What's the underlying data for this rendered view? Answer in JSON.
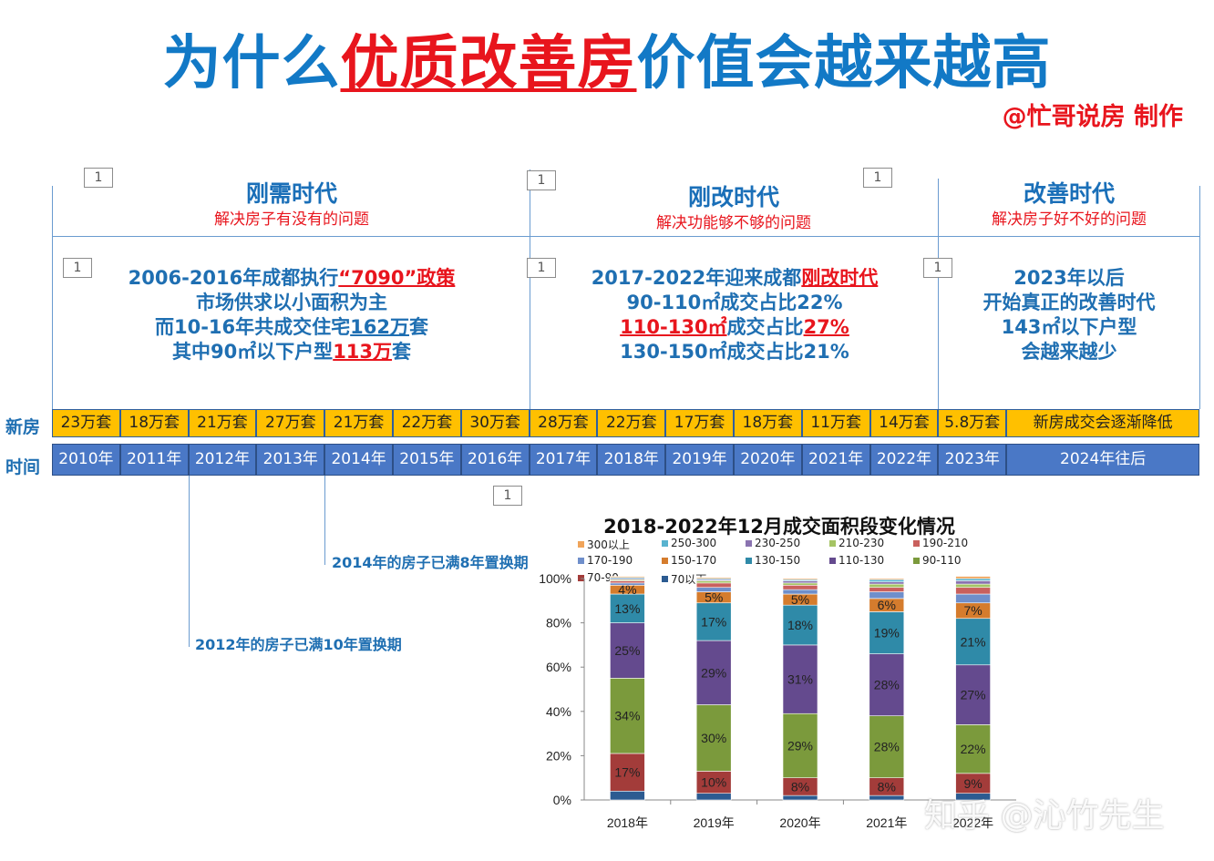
{
  "header": {
    "title_part1": "为什么",
    "title_highlight": "优质改善房",
    "title_part2": "价值会越来越高",
    "credit": "@忙哥说房  制作"
  },
  "placeholder_box_label": "1",
  "eras": [
    {
      "title": "刚需时代",
      "subtitle": "解决房子有没有的问题",
      "lines": [
        "2006-2016年成都执行",
        "“7090”政策",
        "市场供求以小面积为主",
        "而10-16年共成交住宅",
        "162万",
        "套",
        "其中90㎡以下户型",
        "113万",
        "套"
      ]
    },
    {
      "title": "刚改时代",
      "subtitle": "解决功能够不够的问题",
      "lines": [
        "2017-2022年迎来成都",
        "刚改时代",
        "90-110㎡成交占比22%",
        "110-130㎡",
        "成交占比",
        "27%",
        "130-150㎡成交占比21%"
      ]
    },
    {
      "title": "改善时代",
      "subtitle": "解决房子好不好的问题",
      "lines": [
        "2023年以后",
        "开始真正的改善时代",
        "143㎡以下户型",
        "会越来越少"
      ]
    }
  ],
  "timeline": {
    "sales_label": "新房",
    "time_label": "时间",
    "sales": [
      "23万套",
      "18万套",
      "21万套",
      "27万套",
      "21万套",
      "22万套",
      "30万套",
      "28万套",
      "22万套",
      "17万套",
      "18万套",
      "11万套",
      "14万套",
      "5.8万套",
      "新房成交会逐渐降低"
    ],
    "years": [
      "2010年",
      "2011年",
      "2012年",
      "2013年",
      "2014年",
      "2015年",
      "2016年",
      "2017年",
      "2018年",
      "2019年",
      "2020年",
      "2021年",
      "2022年",
      "2023年",
      "2024年往后"
    ]
  },
  "notes": {
    "note_2014": "2014年的房子已满8年置换期",
    "note_2012": "2012年的房子已满10年置换期"
  },
  "watermark": "知乎 @沁竹先生",
  "chart_data": {
    "type": "bar",
    "stacked": true,
    "title": "2018-2022年12月成交面积段变化情况",
    "categories": [
      "2018年",
      "2019年",
      "2020年",
      "2021年",
      "2022年"
    ],
    "ylim": [
      0,
      100
    ],
    "y_ticks": [
      "0%",
      "20%",
      "40%",
      "60%",
      "80%",
      "100%"
    ],
    "legend_position": "top",
    "series": [
      {
        "name": "70以下",
        "color": "#2c5b91",
        "values": [
          4,
          3,
          2,
          2,
          3
        ],
        "labels": [
          "",
          "",
          "",
          "",
          ""
        ]
      },
      {
        "name": "70-90",
        "color": "#a33c3a",
        "values": [
          17,
          10,
          8,
          8,
          9
        ],
        "labels": [
          "17%",
          "10%",
          "8%",
          "8%",
          "9%"
        ]
      },
      {
        "name": "90-110",
        "color": "#7b9a3c",
        "values": [
          34,
          30,
          29,
          28,
          22
        ],
        "labels": [
          "34%",
          "30%",
          "29%",
          "28%",
          "22%"
        ]
      },
      {
        "name": "110-130",
        "color": "#644a8e",
        "values": [
          25,
          29,
          31,
          28,
          27
        ],
        "labels": [
          "25%",
          "29%",
          "31%",
          "28%",
          "27%"
        ]
      },
      {
        "name": "130-150",
        "color": "#2f8aa8",
        "values": [
          13,
          17,
          18,
          19,
          21
        ],
        "labels": [
          "13%",
          "17%",
          "18%",
          "19%",
          "21%"
        ]
      },
      {
        "name": "150-170",
        "color": "#d57c2d",
        "values": [
          4,
          5,
          5,
          6,
          7
        ],
        "labels": [
          "4%",
          "5%",
          "5%",
          "6%",
          "7%"
        ]
      },
      {
        "name": "170-190",
        "color": "#6f8fcb",
        "values": [
          1,
          2,
          2,
          3,
          4
        ],
        "labels": [
          "",
          "",
          "",
          "",
          ""
        ]
      },
      {
        "name": "190-210",
        "color": "#c9605d",
        "values": [
          1,
          2,
          2,
          2,
          3
        ],
        "labels": [
          "",
          "",
          "",
          "",
          ""
        ]
      },
      {
        "name": "210-230",
        "color": "#a5c464",
        "values": [
          0.5,
          1,
          1,
          1.5,
          1.5
        ],
        "labels": [
          "",
          "",
          "",
          "",
          ""
        ]
      },
      {
        "name": "230-250",
        "color": "#8a73b0",
        "values": [
          0.5,
          0.5,
          1,
          1,
          1.5
        ],
        "labels": [
          "",
          "",
          "",
          "",
          ""
        ]
      },
      {
        "name": "250-300",
        "color": "#59b3cf",
        "values": [
          0.5,
          0.5,
          0.5,
          1,
          1
        ],
        "labels": [
          "",
          "",
          "",
          "",
          ""
        ]
      },
      {
        "name": "300以上",
        "color": "#f0a45a",
        "values": [
          0.5,
          0.5,
          0.5,
          0.5,
          1
        ],
        "labels": [
          "",
          "",
          "",
          "",
          ""
        ]
      }
    ]
  }
}
